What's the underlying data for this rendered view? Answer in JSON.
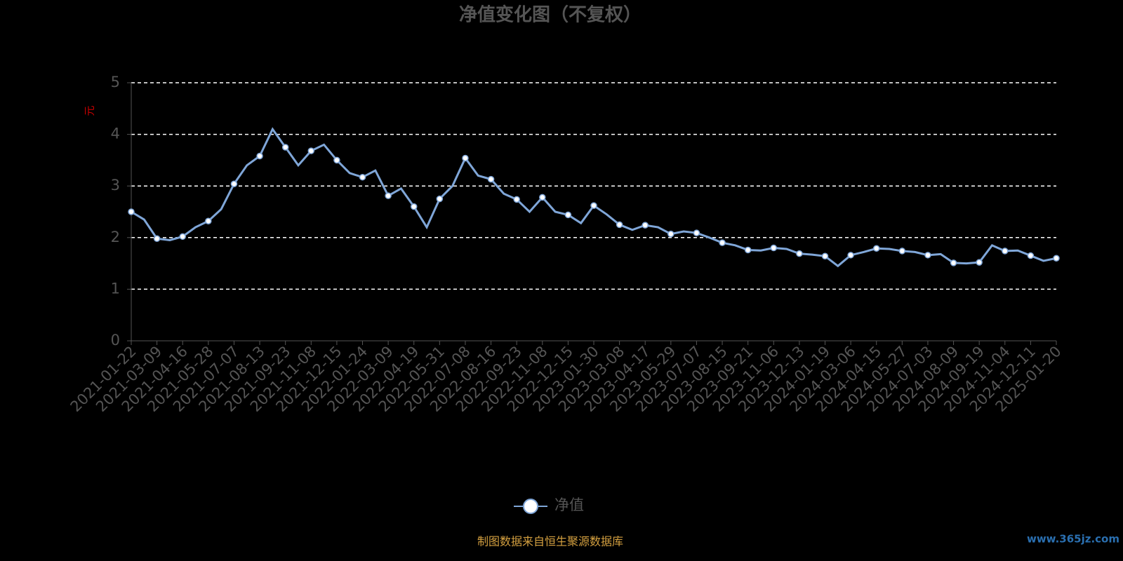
{
  "chart_data": {
    "type": "line",
    "title": "净值变化图（不复权）",
    "y_label": "元",
    "categories": [
      "2021-01-22",
      null,
      "2021-03-09",
      null,
      "2021-04-16",
      null,
      "2021-05-28",
      null,
      "2021-07-07",
      null,
      "2021-08-13",
      null,
      "2021-09-23",
      null,
      "2021-11-08",
      null,
      "2021-12-15",
      null,
      "2022-01-24",
      null,
      "2022-03-09",
      null,
      "2022-04-19",
      null,
      "2022-05-31",
      null,
      "2022-07-08",
      null,
      "2022-08-16",
      null,
      "2022-09-23",
      null,
      "2022-11-08",
      null,
      "2022-12-15",
      null,
      "2023-01-30",
      null,
      "2023-03-08",
      null,
      "2023-04-17",
      null,
      "2023-05-29",
      null,
      "2023-07-07",
      null,
      "2023-08-15",
      null,
      "2023-09-21",
      null,
      "2023-11-06",
      null,
      "2023-12-13",
      null,
      "2024-01-19",
      null,
      "2024-03-06",
      null,
      "2024-04-15",
      null,
      "2024-05-27",
      null,
      "2024-07-03",
      null,
      "2024-08-09",
      null,
      "2024-09-19",
      null,
      "2024-11-04",
      null,
      "2024-12-11",
      null,
      "2025-01-20"
    ],
    "series": [
      {
        "name": "净值",
        "color": "#7fa6d8",
        "values": [
          2.5,
          2.35,
          1.98,
          1.95,
          2.02,
          2.2,
          2.32,
          2.55,
          3.04,
          3.4,
          3.58,
          4.1,
          3.75,
          3.4,
          3.68,
          3.8,
          3.5,
          3.25,
          3.17,
          3.3,
          2.81,
          2.95,
          2.6,
          2.2,
          2.75,
          3.0,
          3.54,
          3.2,
          3.13,
          2.85,
          2.74,
          2.5,
          2.78,
          2.5,
          2.44,
          2.28,
          2.62,
          2.45,
          2.25,
          2.15,
          2.24,
          2.2,
          2.07,
          2.12,
          2.09,
          2.0,
          1.9,
          1.85,
          1.76,
          1.75,
          1.8,
          1.78,
          1.69,
          1.67,
          1.64,
          1.45,
          1.66,
          1.72,
          1.79,
          1.78,
          1.74,
          1.72,
          1.66,
          1.68,
          1.51,
          1.5,
          1.52,
          1.85,
          1.74,
          1.75,
          1.65,
          1.55,
          1.6
        ]
      }
    ],
    "ylim": [
      0,
      5
    ],
    "yticks": [
      0,
      1,
      2,
      3,
      4,
      5
    ],
    "grid": true,
    "source": "制图数据来自恒生聚源数据库",
    "watermark": "www.365jz.com"
  }
}
